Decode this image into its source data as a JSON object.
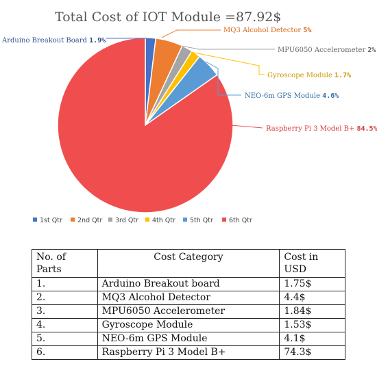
{
  "chart_data": {
    "type": "pie",
    "title": "Total Cost of IOT Module =87.92$",
    "slices": [
      {
        "label": "Arduino Breakout Board",
        "percent": "1.9%",
        "value": 1.9,
        "color": "#4472c4",
        "legend": "1st Qtr"
      },
      {
        "label": "MQ3 Alcohol Detector",
        "percent": "5%",
        "value": 5,
        "color": "#ed7d31",
        "legend": "2nd Qtr"
      },
      {
        "label": "MPU6050 Accelerometer",
        "percent": "2%",
        "value": 2,
        "color": "#a5a5a5",
        "legend": "3rd Qtr"
      },
      {
        "label": "Gyroscope Module",
        "percent": "1.7%",
        "value": 1.7,
        "color": "#ffc000",
        "legend": "4th Qtr"
      },
      {
        "label": "NEO-6m GPS Module",
        "percent": "4.6%",
        "value": 4.6,
        "color": "#5b9bd5",
        "legend": "5th Qtr"
      },
      {
        "label": "Raspberry Pi 3 Model B+",
        "percent": "84.5%",
        "value": 84.5,
        "color": "#f04e4e",
        "legend": "6th Qtr"
      }
    ],
    "legend_position": "bottom"
  },
  "table": {
    "headers": [
      "No. of Parts",
      "Cost Category",
      "Cost in USD"
    ],
    "rows": [
      [
        "1.",
        "Arduino Breakout board",
        "1.75$"
      ],
      [
        "2.",
        "MQ3 Alcohol Detector",
        "4.4$"
      ],
      [
        "3.",
        "MPU6050 Accelerometer",
        "1.84$"
      ],
      [
        "4.",
        "Gyroscope Module",
        "1.53$"
      ],
      [
        "5.",
        "NEO-6m GPS Module",
        "4.1$"
      ],
      [
        "6.",
        "Raspberry Pi 3 Model B+",
        "74.3$"
      ]
    ]
  }
}
